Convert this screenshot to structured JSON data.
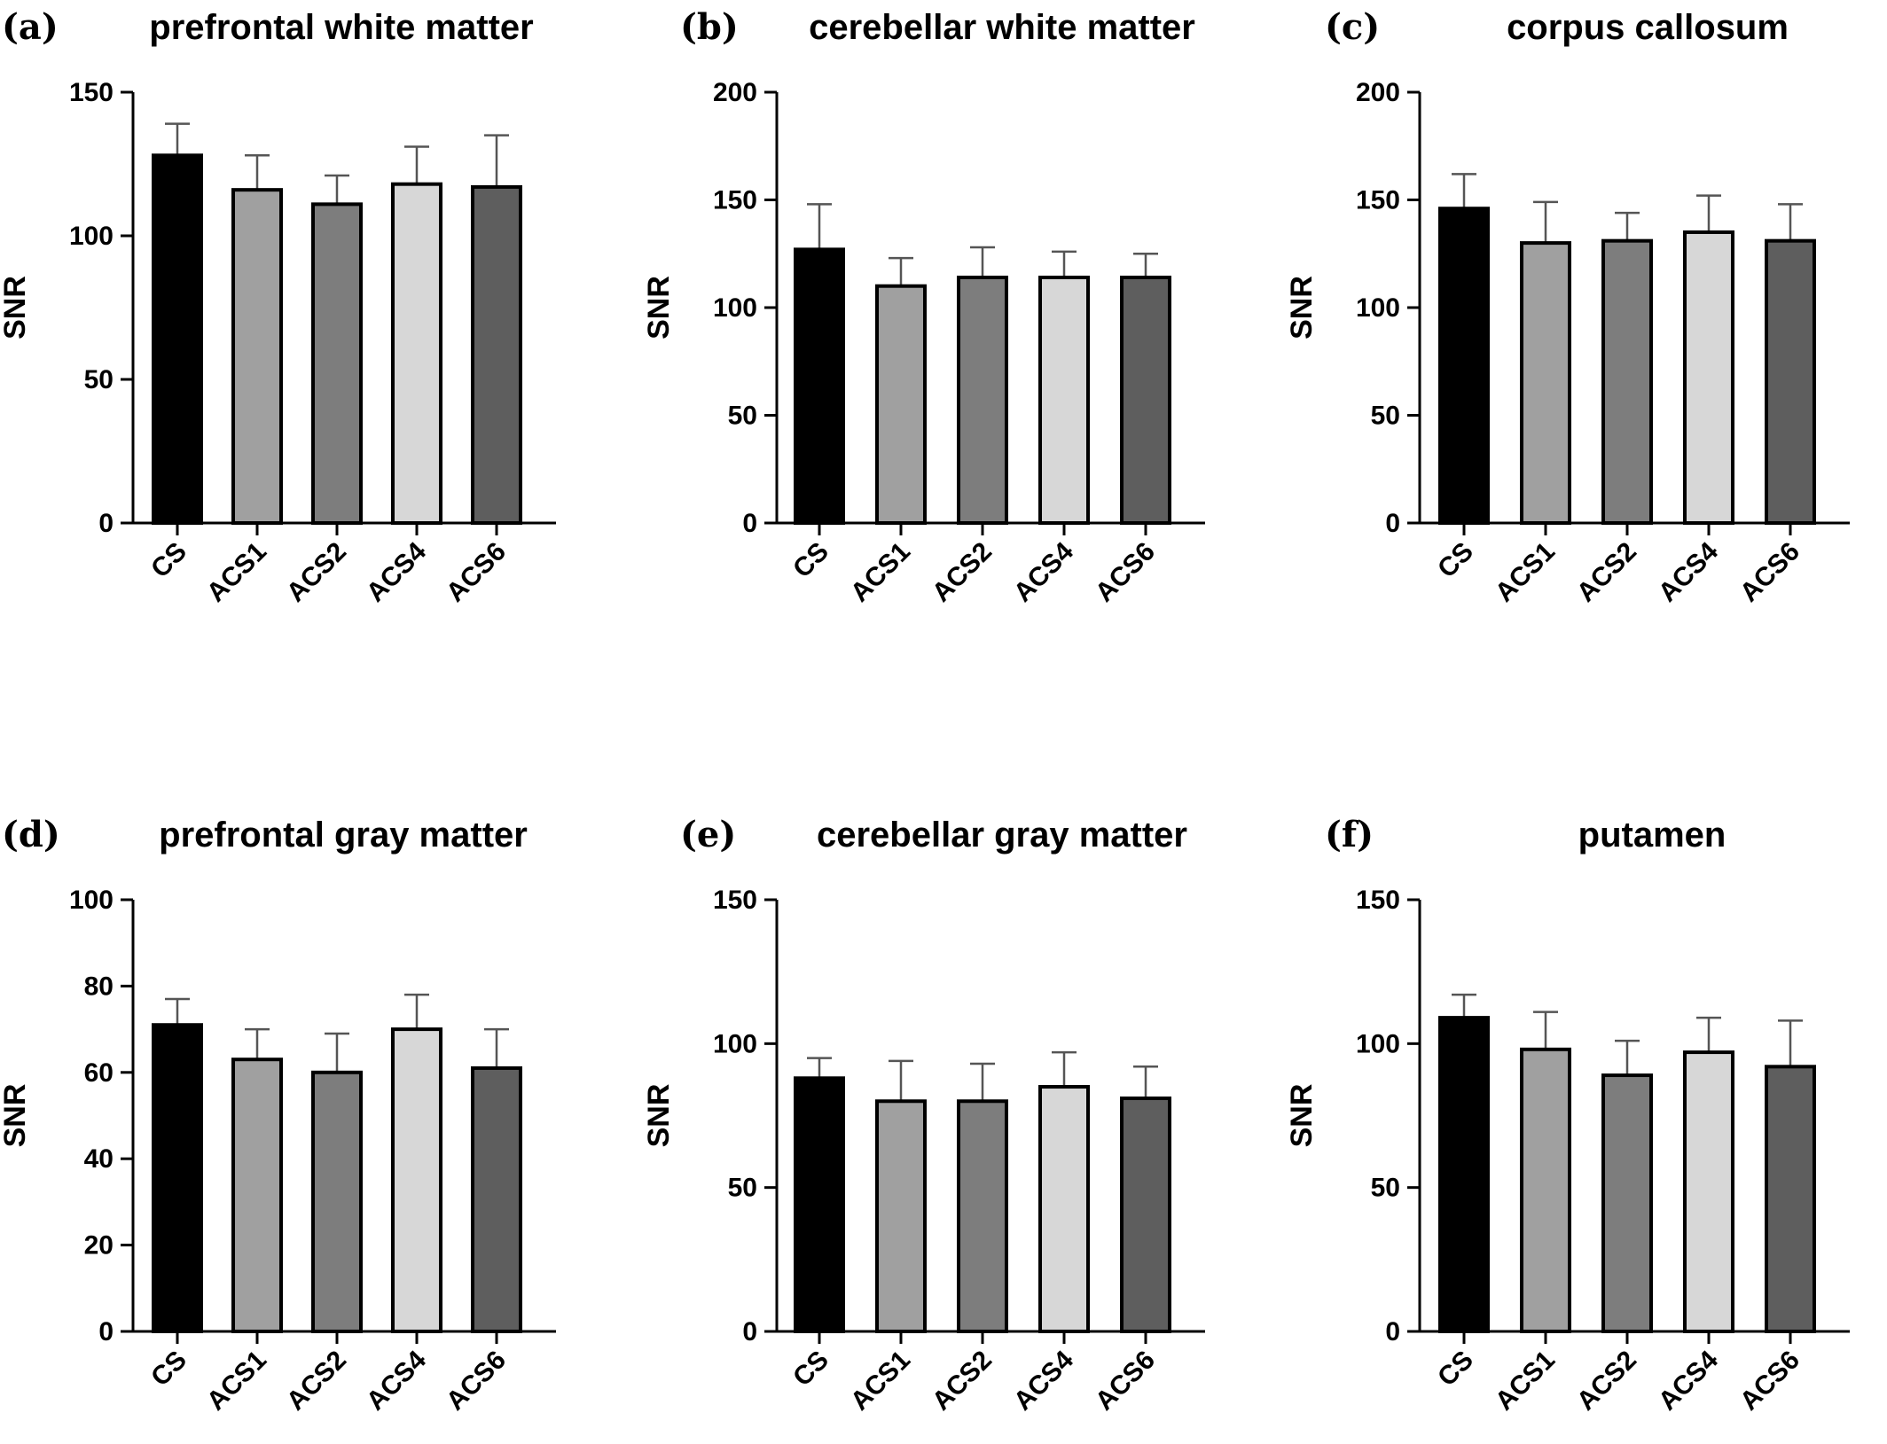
{
  "colors": {
    "bar_fills": [
      "#000000",
      "#a0a0a0",
      "#7d7d7d",
      "#d7d7d7",
      "#5e5e5e"
    ],
    "bar_stroke": "#000000",
    "error_bar": "#555555",
    "axis": "#000000"
  },
  "chart_data": [
    {
      "type": "bar",
      "panel": "(a)",
      "title": "prefrontal white matter",
      "ylabel": "SNR",
      "categories": [
        "CS",
        "ACS1",
        "ACS2",
        "ACS4",
        "ACS6"
      ],
      "values": [
        128,
        116,
        111,
        118,
        117
      ],
      "errors": [
        11,
        12,
        10,
        13,
        18
      ],
      "ylim": [
        0,
        150
      ],
      "yticks": [
        "0",
        "50",
        "100",
        "150"
      ]
    },
    {
      "type": "bar",
      "panel": "(b)",
      "title": "cerebellar white matter",
      "ylabel": "SNR",
      "categories": [
        "CS",
        "ACS1",
        "ACS2",
        "ACS4",
        "ACS6"
      ],
      "values": [
        127,
        110,
        114,
        114,
        114
      ],
      "errors": [
        21,
        13,
        14,
        12,
        11
      ],
      "ylim": [
        0,
        200
      ],
      "yticks": [
        "0",
        "50",
        "100",
        "150",
        "200"
      ]
    },
    {
      "type": "bar",
      "panel": "(c)",
      "title": "corpus callosum",
      "ylabel": "SNR",
      "categories": [
        "CS",
        "ACS1",
        "ACS2",
        "ACS4",
        "ACS6"
      ],
      "values": [
        146,
        130,
        131,
        135,
        131
      ],
      "errors": [
        16,
        19,
        13,
        17,
        17
      ],
      "ylim": [
        0,
        200
      ],
      "yticks": [
        "0",
        "50",
        "100",
        "150",
        "200"
      ]
    },
    {
      "type": "bar",
      "panel": "(d)",
      "title": "prefrontal gray matter",
      "ylabel": "SNR",
      "categories": [
        "CS",
        "ACS1",
        "ACS2",
        "ACS4",
        "ACS6"
      ],
      "values": [
        71,
        63,
        60,
        70,
        61
      ],
      "errors": [
        6,
        7,
        9,
        8,
        9
      ],
      "ylim": [
        0,
        100
      ],
      "yticks": [
        "0",
        "20",
        "40",
        "60",
        "80",
        "100"
      ]
    },
    {
      "type": "bar",
      "panel": "(e)",
      "title": "cerebellar gray matter",
      "ylabel": "SNR",
      "categories": [
        "CS",
        "ACS1",
        "ACS2",
        "ACS4",
        "ACS6"
      ],
      "values": [
        88,
        80,
        80,
        85,
        81
      ],
      "errors": [
        7,
        14,
        13,
        12,
        11
      ],
      "ylim": [
        0,
        150
      ],
      "yticks": [
        "0",
        "50",
        "100",
        "150"
      ]
    },
    {
      "type": "bar",
      "panel": "(f)",
      "title": "putamen",
      "ylabel": "SNR",
      "categories": [
        "CS",
        "ACS1",
        "ACS2",
        "ACS4",
        "ACS6"
      ],
      "values": [
        109,
        98,
        89,
        97,
        92
      ],
      "errors": [
        8,
        13,
        12,
        12,
        16
      ],
      "ylim": [
        0,
        150
      ],
      "yticks": [
        "0",
        "50",
        "100",
        "150"
      ]
    }
  ]
}
